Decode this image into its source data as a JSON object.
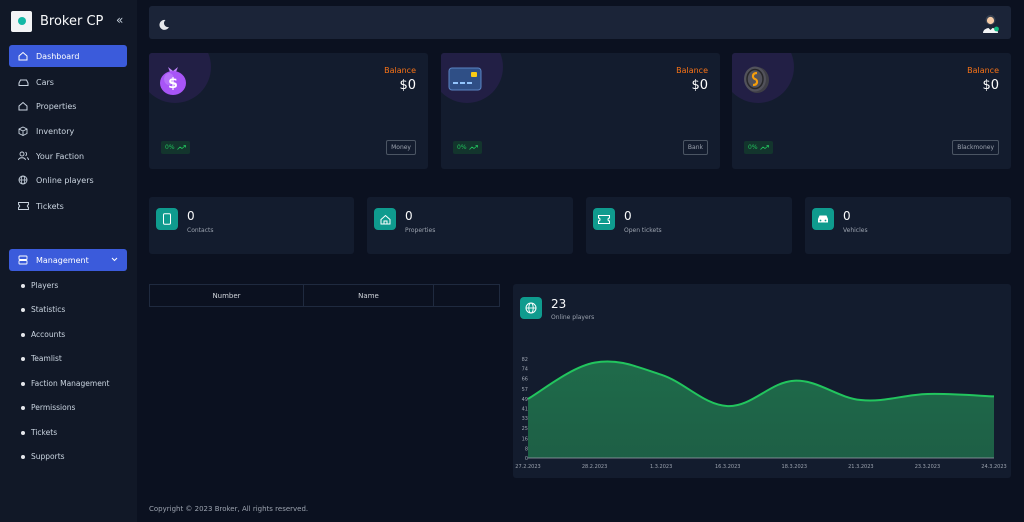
{
  "brand": {
    "title": "Broker CP"
  },
  "sidebar": {
    "items": [
      {
        "label": "Dashboard",
        "icon": "home-icon",
        "active": true
      },
      {
        "label": "Cars",
        "icon": "car-icon"
      },
      {
        "label": "Properties",
        "icon": "house-icon"
      },
      {
        "label": "Inventory",
        "icon": "box-icon"
      },
      {
        "label": "Your Faction",
        "icon": "users-icon"
      },
      {
        "label": "Online players",
        "icon": "globe-icon"
      },
      {
        "label": "Tickets",
        "icon": "ticket-icon"
      }
    ],
    "management": {
      "label": "Management",
      "icon": "server-icon",
      "items": [
        "Players",
        "Statistics",
        "Accounts",
        "Teamlist",
        "Faction Management",
        "Permissions",
        "Tickets",
        "Supports"
      ]
    }
  },
  "balances": [
    {
      "label": "Balance",
      "value": "$0",
      "change": "0%",
      "tag": "Money",
      "icon": "money-bag-icon"
    },
    {
      "label": "Balance",
      "value": "$0",
      "change": "0%",
      "tag": "Bank",
      "icon": "credit-card-icon"
    },
    {
      "label": "Balance",
      "value": "$0",
      "change": "0%",
      "tag": "Blackmoney",
      "icon": "coin-icon"
    }
  ],
  "stats": [
    {
      "value": "0",
      "label": "Contacts",
      "icon": "phone-icon"
    },
    {
      "value": "0",
      "label": "Properties",
      "icon": "house-icon"
    },
    {
      "value": "0",
      "label": "Open tickets",
      "icon": "ticket-icon"
    },
    {
      "value": "0",
      "label": "Vehicles",
      "icon": "car-icon"
    }
  ],
  "table": {
    "headers": [
      "Number",
      "Name",
      ""
    ]
  },
  "online": {
    "value": "23",
    "label": "Online players"
  },
  "chart_data": {
    "type": "area",
    "x": [
      "27.2.2023",
      "28.2.2023",
      "1.3.2023",
      "16.3.2023",
      "18.3.2023",
      "21.3.2023",
      "23.3.2023",
      "24.3.2023"
    ],
    "values": [
      49,
      79,
      69,
      43,
      64,
      48,
      53,
      51
    ],
    "yticks": [
      0,
      8,
      16,
      25,
      33,
      41,
      49,
      57,
      66,
      74,
      82
    ],
    "ylim": [
      0,
      82
    ],
    "colors": {
      "line": "#22c55e",
      "fill": "#1f6b4a"
    }
  },
  "footer": "Copyright © 2023 Broker, All rights reserved.",
  "colors": {
    "accent": "#3b5bdb",
    "teal": "#0f9b8e",
    "orange": "#f97316",
    "green": "#22c55e"
  }
}
